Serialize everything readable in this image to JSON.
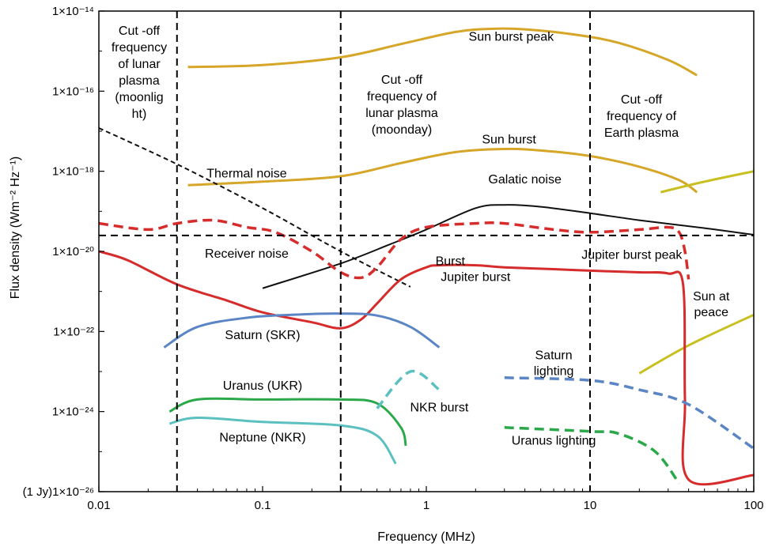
{
  "chart_data": {
    "type": "line",
    "title": "",
    "xlabel": "Frequency (MHz)",
    "ylabel": "Flux density (Wm⁻² Hz⁻¹)",
    "xscale": "log",
    "yscale": "log",
    "xlim": [
      0.01,
      100
    ],
    "ylim": [
      1e-26,
      1e-14
    ],
    "grid": false,
    "x_ticks": [
      {
        "value": 0.01,
        "label": "0.01"
      },
      {
        "value": 0.1,
        "label": "0.1"
      },
      {
        "value": 1,
        "label": "1"
      },
      {
        "value": 10,
        "label": "10"
      },
      {
        "value": 100,
        "label": "100"
      }
    ],
    "y_ticks": [
      {
        "value": 1e-14,
        "label": "1×10⁻¹⁴"
      },
      {
        "value": 1e-16,
        "label": "1×10⁻¹⁶"
      },
      {
        "value": 1e-18,
        "label": "1×10⁻¹⁸"
      },
      {
        "value": 1e-20,
        "label": "1×10⁻²⁰"
      },
      {
        "value": 1e-22,
        "label": "1×10⁻²²"
      },
      {
        "value": 1e-24,
        "label": "1×10⁻²⁴"
      },
      {
        "value": 1e-26,
        "label": "(1 Jy)1×10⁻²⁶"
      }
    ],
    "vlines": [
      {
        "x": 0.03,
        "label": "Cut -off frequency of lunar plasma (moonlight)"
      },
      {
        "x": 0.3,
        "label": "Cut -off frequency of lunar plasma (moonday)"
      },
      {
        "x": 10,
        "label": "Cut -off frequency of Earth plasma"
      }
    ],
    "hlines": [
      {
        "y": 2.5e-20,
        "label": "Receiver noise"
      }
    ],
    "series": [
      {
        "color": "#d6a629",
        "dash": false,
        "x": [
          0.035,
          0.1,
          0.3,
          0.7,
          1.5,
          2.5,
          4,
          8,
          15,
          30,
          45
        ],
        "y": [
          4e-16,
          4.5e-16,
          7e-16,
          1.5e-15,
          3e-15,
          3.6e-15,
          3.5e-15,
          2.6e-15,
          1.6e-15,
          6e-16,
          2.5e-16
        ]
      },
      {
        "color": "#d6a629",
        "dash": false,
        "x": [
          0.035,
          0.1,
          0.3,
          0.7,
          1.5,
          3,
          5,
          10,
          20,
          35,
          45
        ],
        "y": [
          4.5e-19,
          5.5e-19,
          7.5e-19,
          1.6e-18,
          3e-18,
          3.6e-18,
          3.3e-18,
          2.4e-18,
          1.3e-18,
          6e-19,
          3e-19
        ]
      },
      {
        "color": "#c8c020",
        "dash": false,
        "x": [
          27,
          50,
          100
        ],
        "y": [
          3e-19,
          5.5e-19,
          1e-18
        ]
      },
      {
        "color": "#c8c020",
        "dash": false,
        "x": [
          20,
          40,
          100
        ],
        "y": [
          9e-24,
          4.5e-23,
          2.6e-22
        ]
      },
      {
        "color": "#111111",
        "dash": false,
        "x": [
          0.1,
          0.3,
          0.6,
          1,
          2,
          3,
          5,
          10,
          20,
          50,
          100
        ],
        "y": [
          1.2e-21,
          5e-21,
          1.5e-20,
          3.5e-20,
          1.2e-19,
          1.45e-19,
          1.3e-19,
          9e-20,
          6e-20,
          3.8e-20,
          2.6e-20
        ]
      },
      {
        "color": "#111111",
        "dash": "dashed",
        "x": [
          0.01,
          0.03,
          0.1,
          0.3,
          0.8
        ],
        "y": [
          1.2e-17,
          1.5e-18,
          1.2e-19,
          1e-20,
          1.3e-21
        ]
      },
      {
        "color": "#d62c2c",
        "dash": "dashed",
        "x": [
          0.01,
          0.02,
          0.03,
          0.05,
          0.08,
          0.12,
          0.2,
          0.3,
          0.4,
          0.5,
          0.7,
          1,
          2,
          3,
          6,
          10,
          20,
          30,
          35,
          38,
          40
        ],
        "y": [
          5e-20,
          3.5e-20,
          5e-20,
          6e-20,
          4e-20,
          3e-20,
          1e-20,
          3e-21,
          2.2e-21,
          4e-21,
          2e-20,
          4e-20,
          5e-20,
          5e-20,
          3.5e-20,
          3e-20,
          3.5e-20,
          4e-20,
          3e-20,
          1e-20,
          2e-21
        ]
      },
      {
        "color": "#d62c2c",
        "dash": false,
        "x": [
          0.01,
          0.015,
          0.03,
          0.06,
          0.1,
          0.2,
          0.3,
          0.4,
          0.5,
          0.7,
          1,
          1.2,
          2,
          3,
          6,
          10,
          20,
          30,
          37,
          38,
          40,
          100
        ],
        "y": [
          1e-20,
          6e-21,
          1.5e-21,
          6e-22,
          3e-22,
          1.7e-22,
          1.2e-22,
          2e-22,
          5e-22,
          2e-21,
          4e-21,
          4.5e-21,
          4.5e-21,
          4e-21,
          3.6e-21,
          3.3e-21,
          3e-21,
          2.8e-21,
          1.5e-21,
          2e-24,
          2e-26,
          2.6e-26
        ]
      },
      {
        "color": "#5b85c4",
        "dash": false,
        "x": [
          0.025,
          0.04,
          0.08,
          0.15,
          0.3,
          0.5,
          0.8,
          1.2
        ],
        "y": [
          4e-23,
          1.3e-22,
          2.2e-22,
          2.6e-22,
          2.8e-22,
          2.5e-22,
          1.3e-22,
          4e-23
        ]
      },
      {
        "color": "#5b85c4",
        "dash": "dashed",
        "x": [
          3,
          10,
          20,
          40,
          100
        ],
        "y": [
          7e-24,
          6e-24,
          3.5e-24,
          1.5e-24,
          1.2e-25
        ]
      },
      {
        "color": "#2aa84a",
        "dash": false,
        "x": [
          0.027,
          0.04,
          0.1,
          0.3,
          0.5,
          0.7,
          0.75
        ],
        "y": [
          1e-24,
          2e-24,
          2e-24,
          2e-24,
          1.6e-24,
          4e-25,
          1.4e-25
        ]
      },
      {
        "color": "#2aa84a",
        "dash": "dashed",
        "x": [
          3,
          10,
          15,
          25,
          35
        ],
        "y": [
          4e-25,
          3.2e-25,
          2.8e-25,
          1e-25,
          1.6e-26
        ]
      },
      {
        "color": "#5cc0c0",
        "dash": false,
        "x": [
          0.027,
          0.04,
          0.1,
          0.3,
          0.5,
          0.65
        ],
        "y": [
          5e-25,
          7e-25,
          5.5e-25,
          4.5e-25,
          2.5e-25,
          5e-26
        ]
      },
      {
        "color": "#5cc0c0",
        "dash": "dashed",
        "x": [
          0.5,
          0.8,
          1.2
        ],
        "y": [
          1.2e-24,
          1e-23,
          3.5e-24
        ]
      }
    ],
    "annotations": [
      {
        "text": "Sun burst peak",
        "x": 3.3,
        "y": 1.8e-15
      },
      {
        "text": "Sun burst",
        "x": 3.2,
        "y": 5e-18
      },
      {
        "text": "Thermal noise",
        "x": 0.08,
        "y": 7e-19
      },
      {
        "text": "Galatic noise",
        "x": 4,
        "y": 5e-19
      },
      {
        "text": "Receiver noise",
        "x": 0.08,
        "y": 7e-21
      },
      {
        "text": "Burst",
        "x": 1.4,
        "y": 4.5e-21
      },
      {
        "text": "Jupiter burst",
        "x": 2,
        "y": 1.8e-21
      },
      {
        "text": "Jupiter burst peak",
        "x": 18,
        "y": 6.5e-21
      },
      {
        "text": "Sun at peace",
        "x": 55,
        "y": 6e-22
      },
      {
        "text": "Saturn (SKR)",
        "x": 0.1,
        "y": 6.5e-23
      },
      {
        "text": "Saturn lighting",
        "x": 6,
        "y": 2e-23
      },
      {
        "text": "Uranus (UKR)",
        "x": 0.1,
        "y": 3.5e-24
      },
      {
        "text": "NKR burst",
        "x": 1.2,
        "y": 1e-24
      },
      {
        "text": "Neptune (NKR)",
        "x": 0.1,
        "y": 1.8e-25
      },
      {
        "text": "Uranus lighting",
        "x": 6,
        "y": 1.5e-25
      }
    ],
    "vline_labels": [
      {
        "lines": [
          "Cut -off",
          "frequency",
          "of lunar",
          "plasma",
          "(moonlig",
          "ht)"
        ]
      },
      {
        "lines": [
          "Cut -off",
          "frequency  of",
          "lunar plasma",
          "(moonday)"
        ]
      },
      {
        "lines": [
          "Cut -off",
          "frequency   of",
          "Earth plasma"
        ]
      }
    ]
  }
}
